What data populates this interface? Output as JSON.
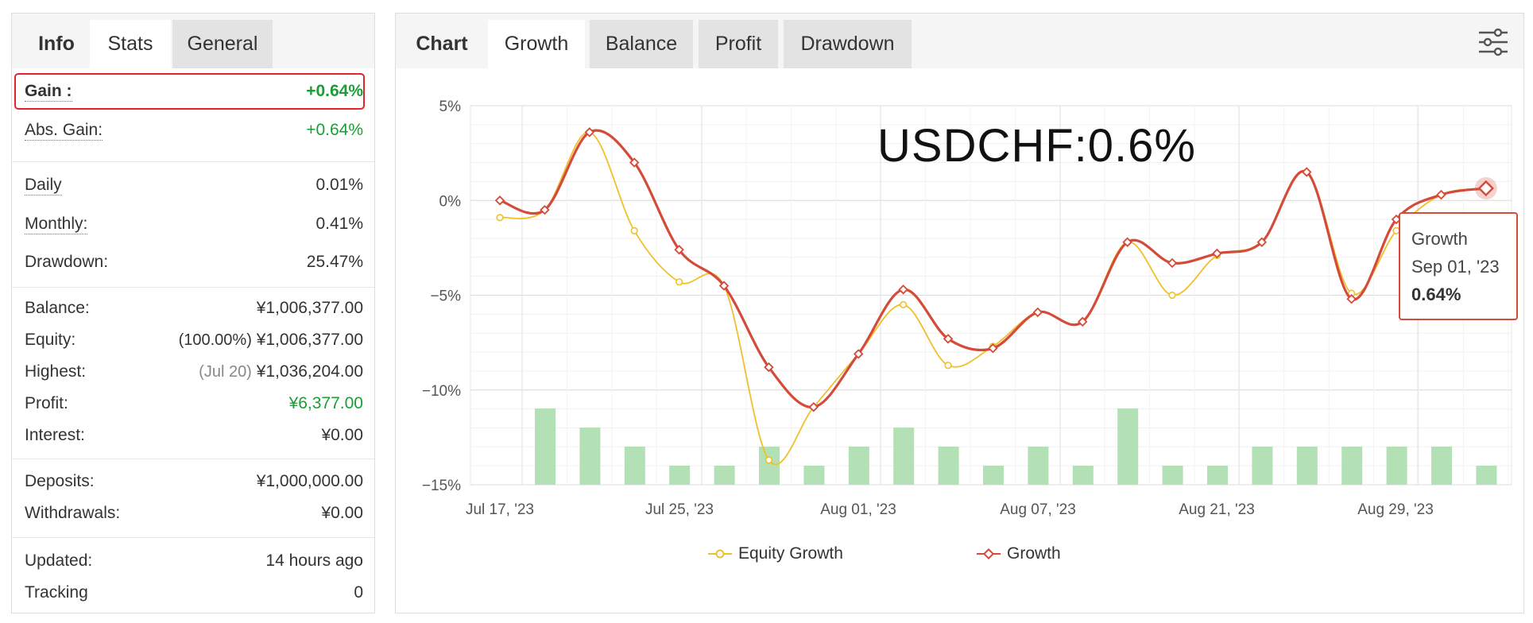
{
  "left_panel": {
    "tabs": [
      {
        "label": "Info"
      },
      {
        "label": "Stats"
      },
      {
        "label": "General"
      }
    ],
    "rows": {
      "gain": {
        "label": "Gain :",
        "value": "+0.64%"
      },
      "abs_gain": {
        "label": "Abs. Gain:",
        "value": "+0.64%"
      },
      "daily": {
        "label": "Daily",
        "value": "0.01%"
      },
      "monthly": {
        "label": "Monthly:",
        "value": "0.41%"
      },
      "drawdown": {
        "label": "Drawdown:",
        "value": "25.47%"
      },
      "balance": {
        "label": "Balance:",
        "value": "¥1,006,377.00"
      },
      "equity": {
        "label": "Equity:",
        "note": "(100.00%)",
        "value": "¥1,006,377.00"
      },
      "highest": {
        "label": "Highest:",
        "note": "(Jul 20)",
        "value": "¥1,036,204.00"
      },
      "profit": {
        "label": "Profit:",
        "value": "¥6,377.00"
      },
      "interest": {
        "label": "Interest:",
        "value": "¥0.00"
      },
      "deposits": {
        "label": "Deposits:",
        "value": "¥1,000,000.00"
      },
      "withdrawals": {
        "label": "Withdrawals:",
        "value": "¥0.00"
      },
      "updated": {
        "label": "Updated:",
        "value": "14 hours ago"
      },
      "tracking": {
        "label": "Tracking",
        "value": "0"
      }
    }
  },
  "right_panel": {
    "tabs": [
      {
        "label": "Chart"
      },
      {
        "label": "Growth"
      },
      {
        "label": "Balance"
      },
      {
        "label": "Profit"
      },
      {
        "label": "Drawdown"
      }
    ],
    "filter_icon": "sliders-icon",
    "overlay_title": "USDCHF:0.6%",
    "tooltip": {
      "series": "Growth",
      "date": "Sep 01, '23",
      "value": "0.64%"
    }
  },
  "colors": {
    "growth": "#d44b3a",
    "equity_growth": "#f0c02b",
    "bars": "#b4e0b6",
    "positive": "#1a9e35",
    "highlight_border": "#e3242b"
  },
  "chart_data": {
    "type": "line",
    "x_tick_labels": [
      "Jul 17, '23",
      "Jul 25, '23",
      "Aug 01, '23",
      "Aug 07, '23",
      "Aug 21, '23",
      "Aug 29, '23"
    ],
    "y_tick_labels": [
      "5%",
      "0%",
      "−5%",
      "−10%",
      "−15%"
    ],
    "ylim": [
      -15,
      5
    ],
    "grid": true,
    "legend_position": "bottom",
    "series": [
      {
        "name": "Equity Growth",
        "color": "#f0c02b",
        "values": [
          -0.9,
          -0.5,
          3.6,
          -1.6,
          -4.3,
          -4.5,
          -13.7,
          -10.9,
          -8.1,
          -5.5,
          -8.7,
          -7.7,
          -5.9,
          -6.4,
          -2.2,
          -5.0,
          -2.9,
          -2.2,
          1.5,
          -4.9,
          -1.6,
          0.3,
          0.64
        ]
      },
      {
        "name": "Growth",
        "color": "#d44b3a",
        "values": [
          0.0,
          -0.5,
          3.6,
          2.0,
          -2.6,
          -4.5,
          -8.8,
          -10.9,
          -8.1,
          -4.7,
          -7.3,
          -7.8,
          -5.9,
          -6.4,
          -2.2,
          -3.3,
          -2.8,
          -2.2,
          1.5,
          -5.2,
          -1.0,
          0.3,
          0.64
        ]
      }
    ],
    "bars": {
      "color": "#b4e0b6",
      "values": [
        4,
        3,
        2,
        1,
        1,
        2,
        1,
        2,
        3,
        2,
        1,
        2,
        1,
        4,
        1,
        1,
        2,
        2,
        2,
        2,
        2,
        1
      ]
    }
  }
}
